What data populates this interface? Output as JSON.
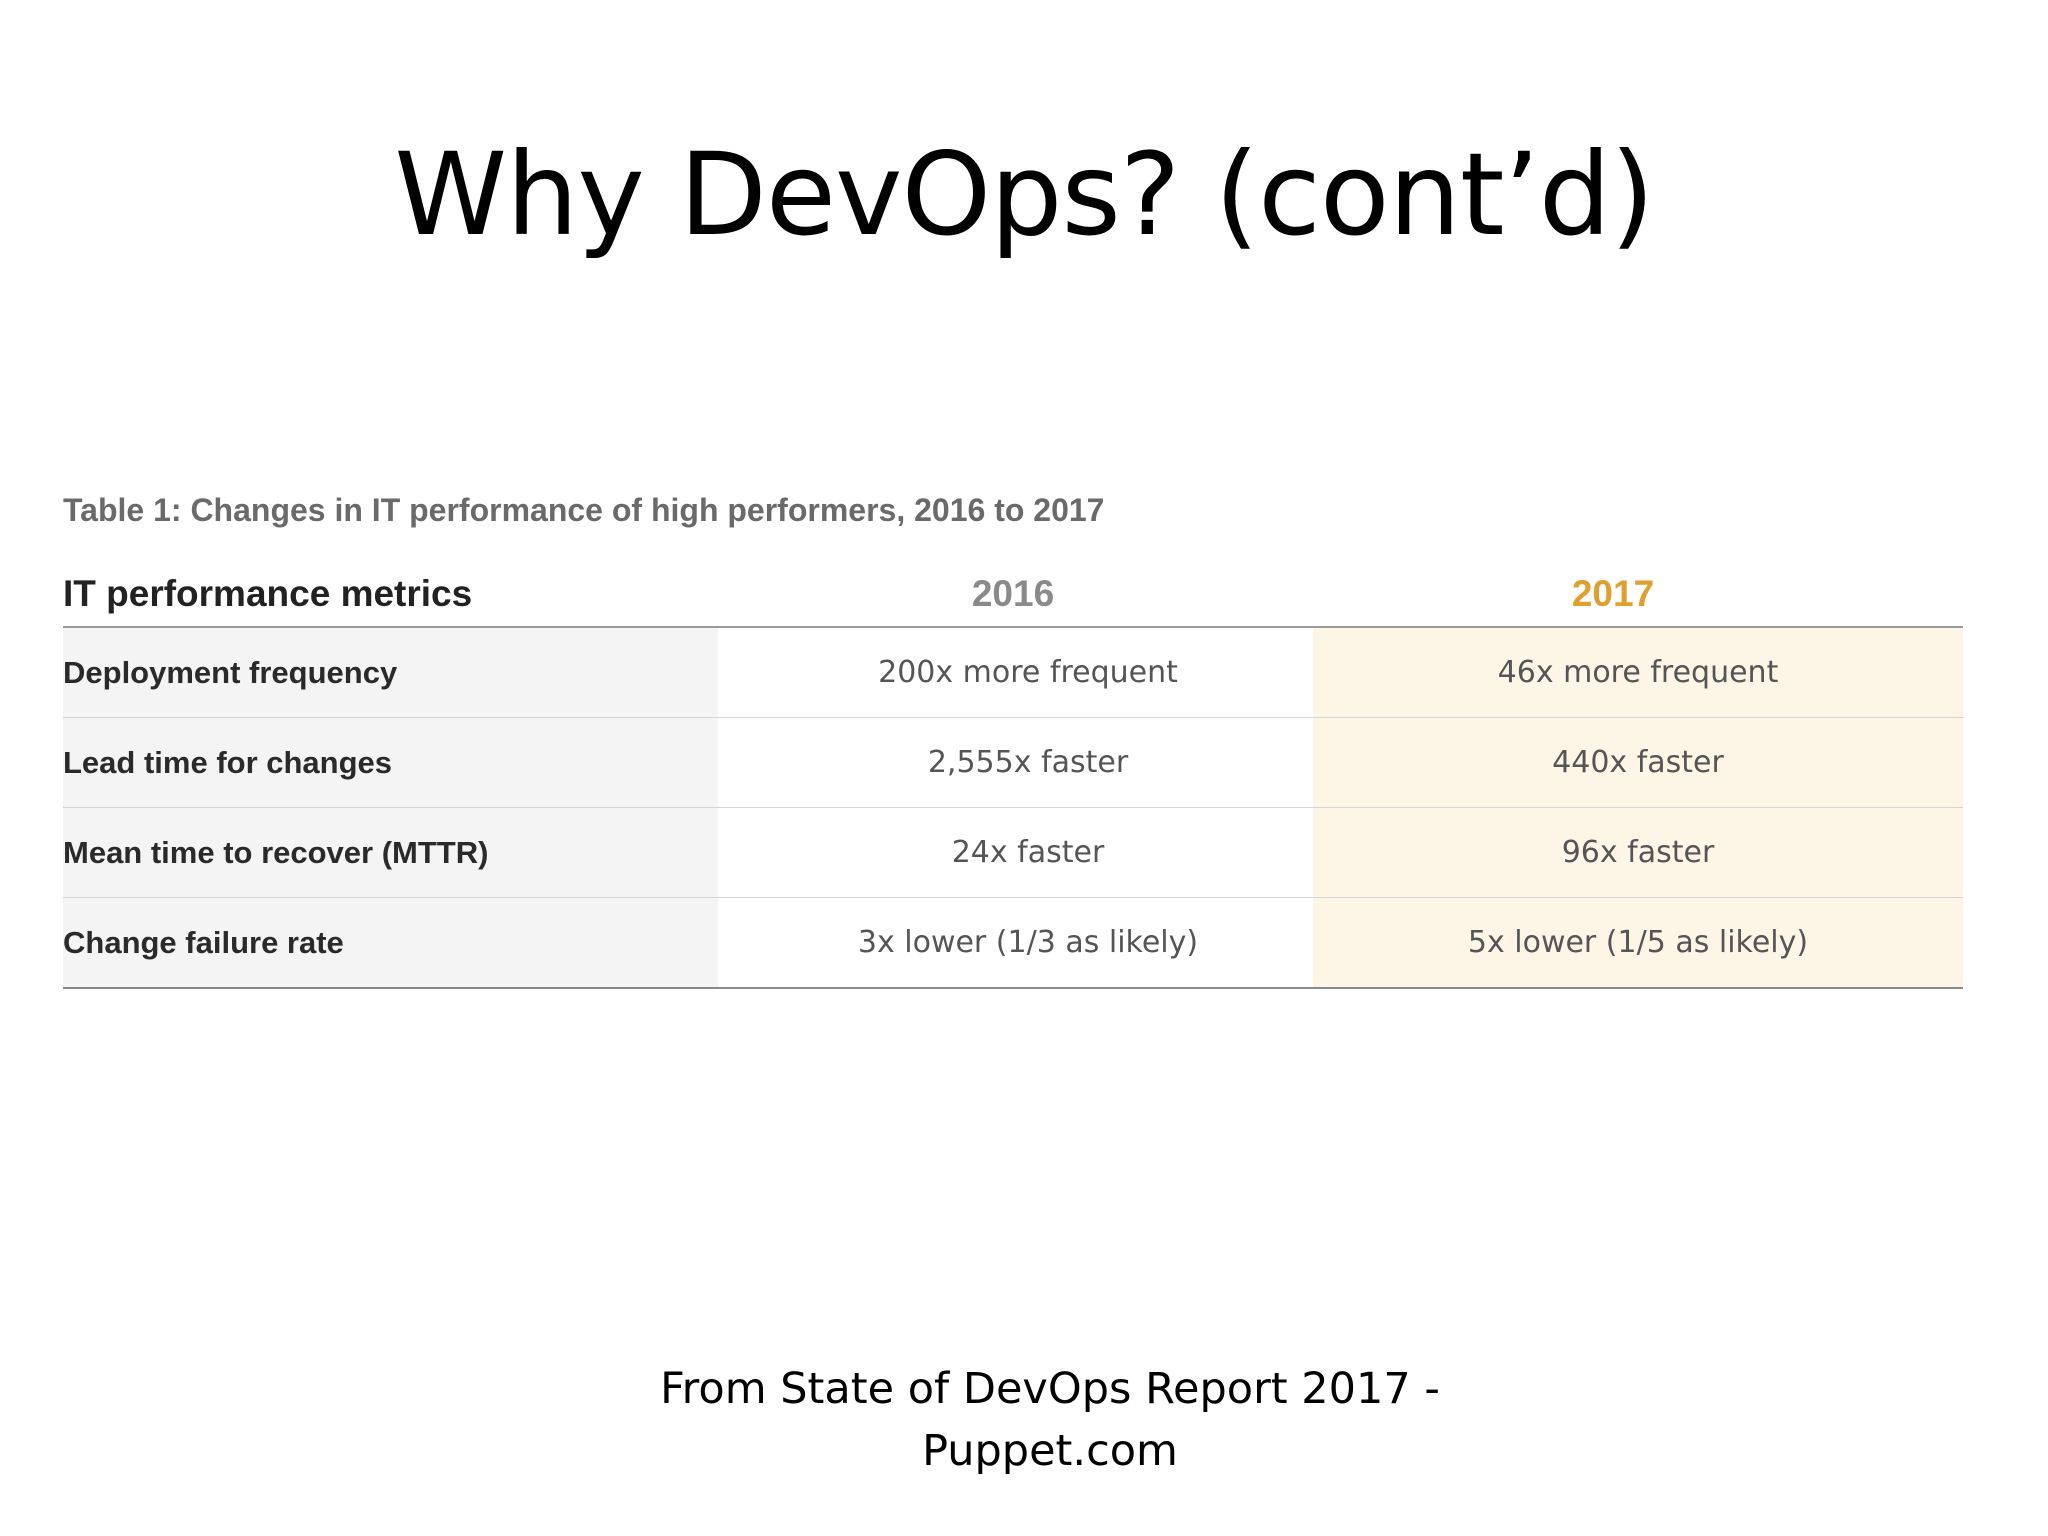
{
  "slide": {
    "title": "Why DevOps? (cont’d)",
    "source_line_1": "From State of DevOps Report 2017 -",
    "source_line_2": "Puppet.com"
  },
  "table": {
    "caption": "Table 1: Changes in IT performance of high performers, 2016 to 2017",
    "headers": {
      "metric": "IT performance metrics",
      "year_2016": "2016",
      "year_2017": "2017"
    },
    "rows": [
      {
        "metric": "Deployment frequency",
        "v2016": "200x more frequent",
        "v2017": "46x more frequent"
      },
      {
        "metric": "Lead time for changes",
        "v2016": "2,555x faster",
        "v2017": "440x faster"
      },
      {
        "metric": "Mean time to recover (MTTR)",
        "v2016": "24x faster",
        "v2017": "96x faster"
      },
      {
        "metric": "Change failure rate",
        "v2016": "3x lower (1/3 as likely)",
        "v2017": "5x lower (1/5 as likely)"
      }
    ]
  },
  "colors": {
    "highlight_2017": "#e0a030",
    "column_2017_fill": "#fdf5e6",
    "metric_column_fill": "#f4f4f4"
  }
}
